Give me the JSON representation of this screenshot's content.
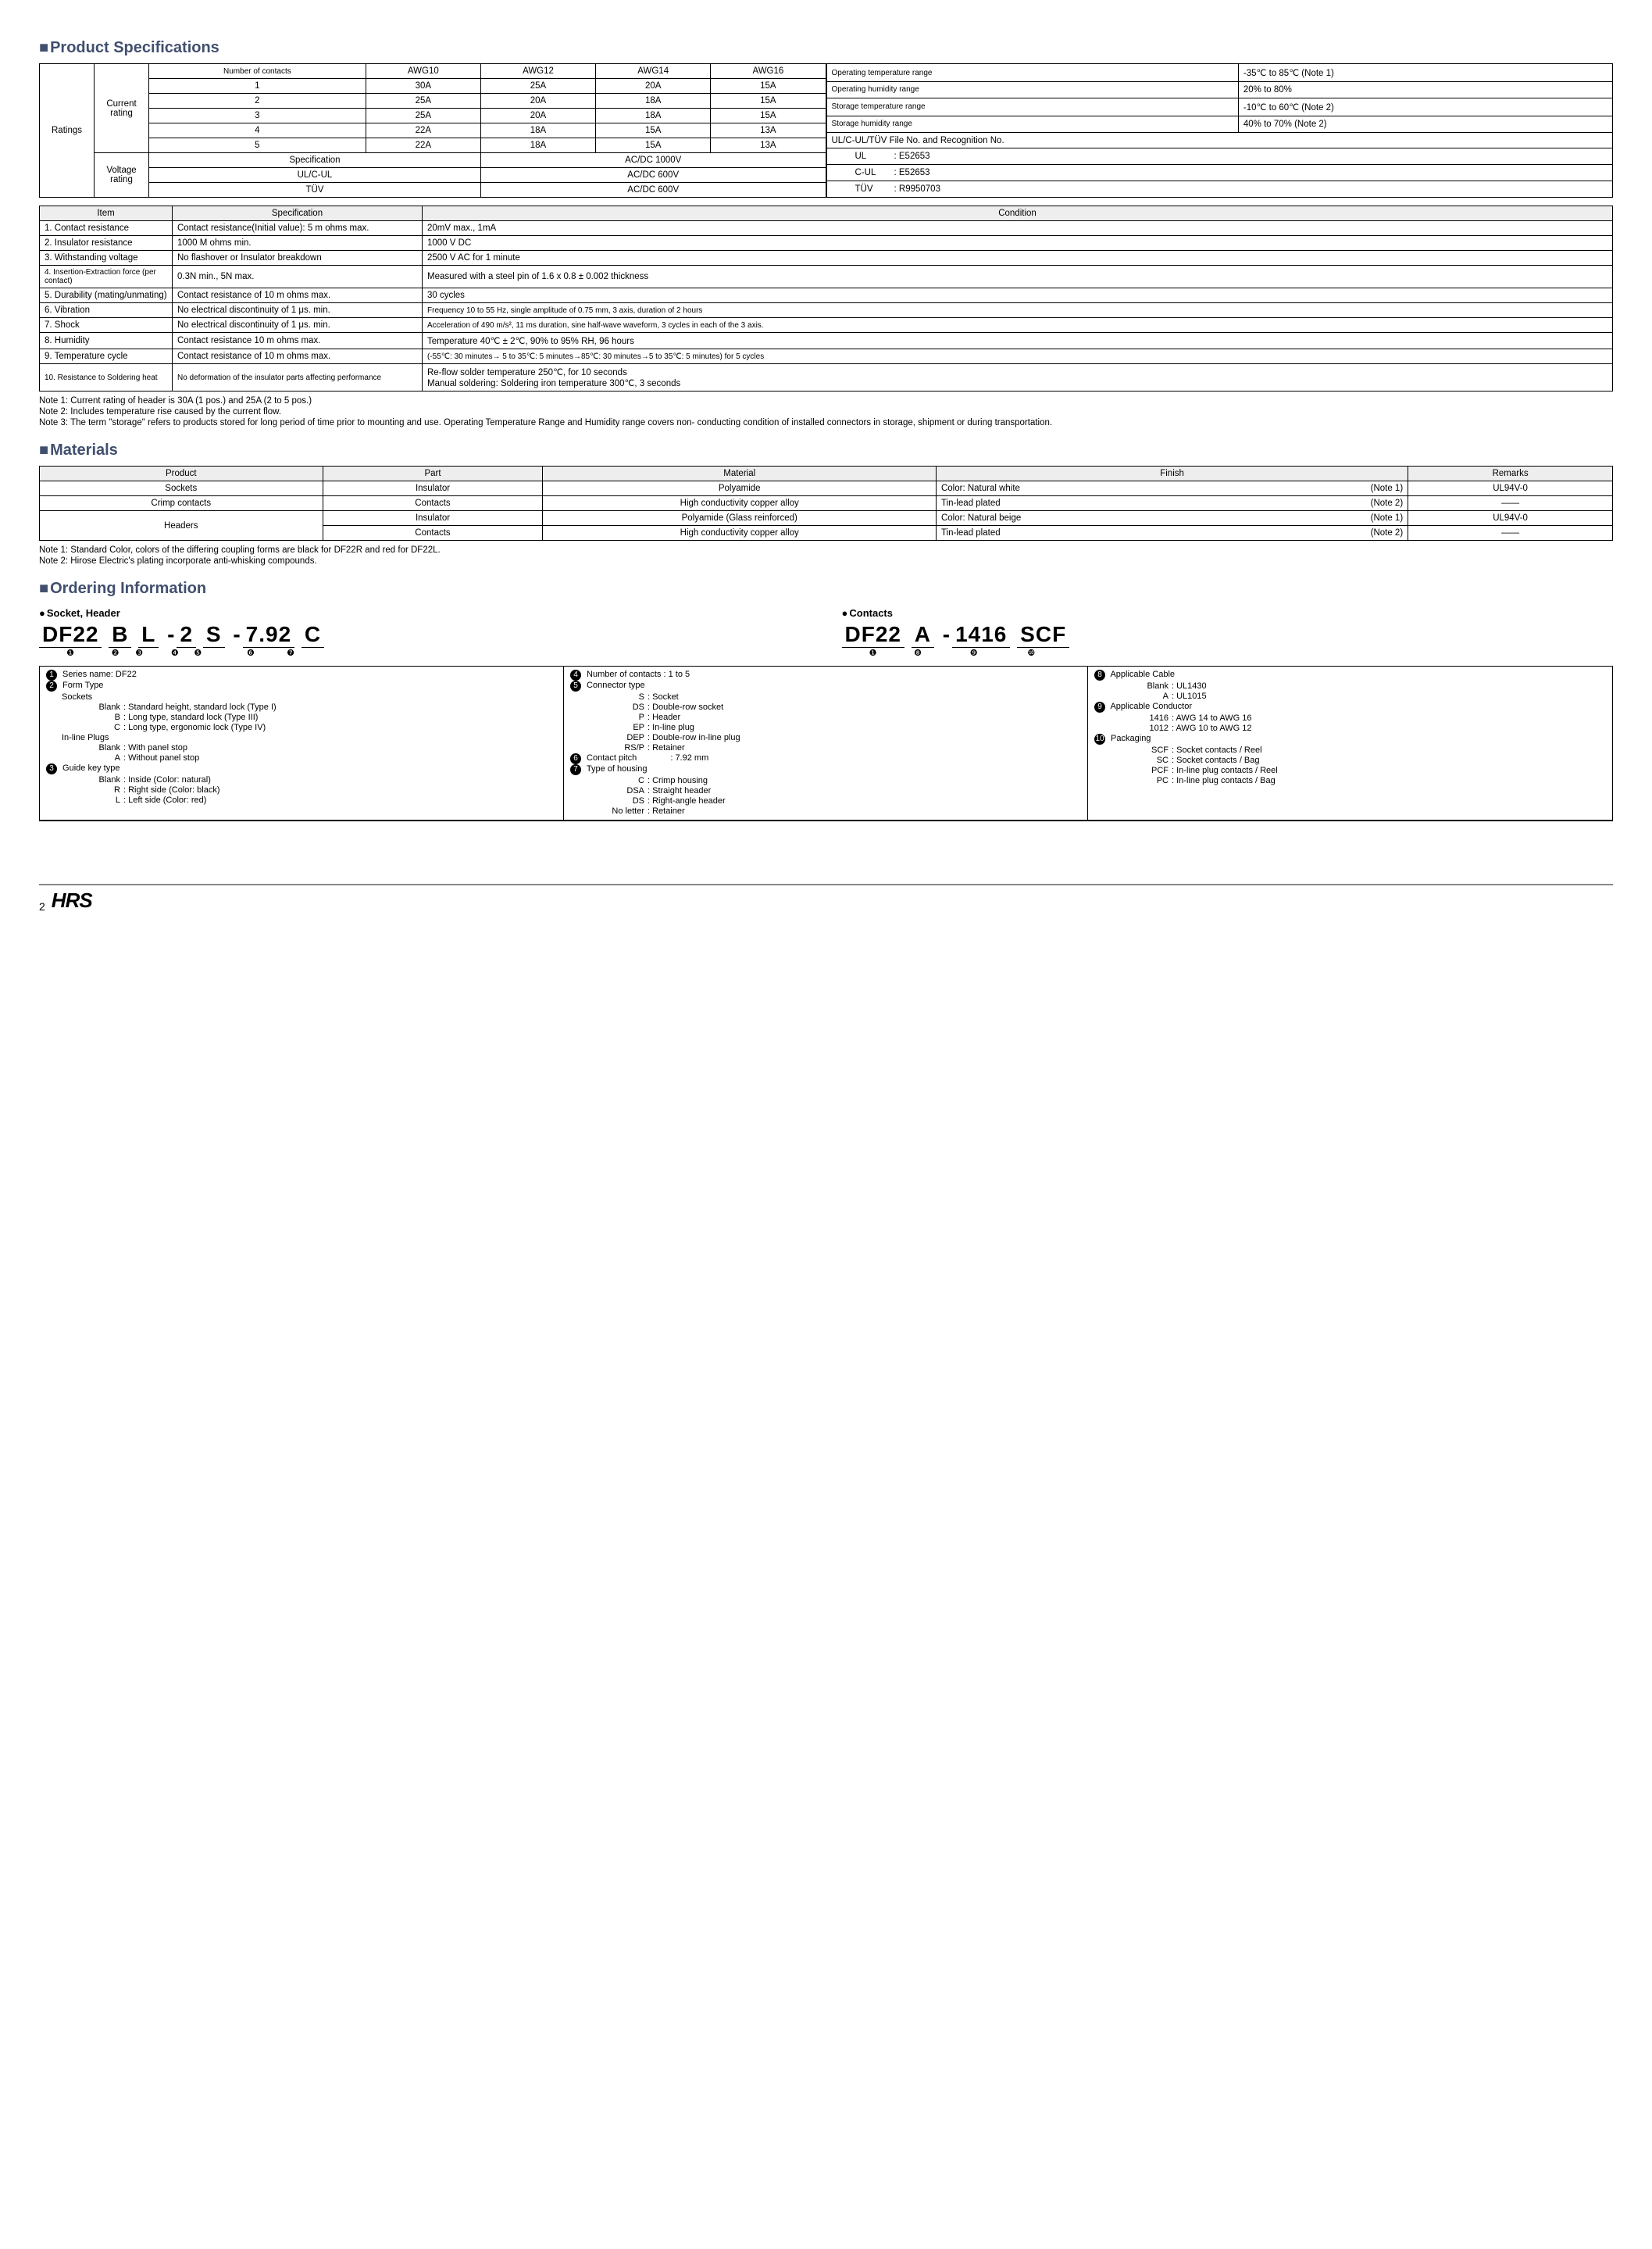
{
  "sections": {
    "spec_title": "Product Specifications",
    "materials_title": "Materials",
    "ordering_title": "Ordering Information"
  },
  "ratings": {
    "label_ratings": "Ratings",
    "label_current": "Current rating",
    "label_voltage": "Voltage rating",
    "header_noc": "Number of contacts",
    "header_awg": [
      "AWG10",
      "AWG12",
      "AWG14",
      "AWG16"
    ],
    "rows": [
      {
        "n": "1",
        "vals": [
          "30A",
          "25A",
          "20A",
          "15A"
        ]
      },
      {
        "n": "2",
        "vals": [
          "25A",
          "20A",
          "18A",
          "15A"
        ]
      },
      {
        "n": "3",
        "vals": [
          "25A",
          "20A",
          "18A",
          "15A"
        ]
      },
      {
        "n": "4",
        "vals": [
          "22A",
          "18A",
          "15A",
          "13A"
        ]
      },
      {
        "n": "5",
        "vals": [
          "22A",
          "18A",
          "15A",
          "13A"
        ]
      }
    ],
    "voltage_header_spec": "Specification",
    "voltage_rows": [
      {
        "spec": "Specification",
        "val": "AC/DC    1000V"
      },
      {
        "spec": "UL/C-UL",
        "val": "AC/DC     600V"
      },
      {
        "spec": "TÜV",
        "val": "AC/DC     600V"
      }
    ],
    "env": [
      {
        "k": "Operating temperature range",
        "v": "-35℃ to 85℃ (Note 1)"
      },
      {
        "k": "Operating humidity range",
        "v": "20% to 80%"
      },
      {
        "k": "Storage temperature range",
        "v": "-10℃ to 60℃ (Note 2)"
      },
      {
        "k": "Storage humidity range",
        "v": "40% to 70% (Note 2)"
      }
    ],
    "cert_header": "UL/C-UL/TÜV    File No. and Recognition No.",
    "certs": [
      {
        "k": "UL",
        "v": ": E52653"
      },
      {
        "k": "C-UL",
        "v": ": E52653"
      },
      {
        "k": "TÜV",
        "v": ": R9950703"
      }
    ]
  },
  "spec_table": {
    "headers": [
      "Item",
      "Specification",
      "Condition"
    ],
    "rows": [
      {
        "item": "1. Contact resistance",
        "spec": "Contact resistance(Initial value): 5 m ohms max.",
        "cond": "20mV max., 1mA"
      },
      {
        "item": "2. Insulator resistance",
        "spec": "1000 M ohms min.",
        "cond": "1000 V DC"
      },
      {
        "item": "3. Withstanding voltage",
        "spec": "No flashover or Insulator breakdown",
        "cond": "2500 V AC for 1 minute"
      },
      {
        "item": "4. Insertion-Extraction force (per contact)",
        "spec": "0.3N min., 5N max.",
        "cond": "Measured with a steel pin of 1.6 x 0.8 ± 0.002 thickness"
      },
      {
        "item": "5. Durability (mating/unmating)",
        "spec": "Contact resistance of 10 m ohms max.",
        "cond": "30 cycles"
      },
      {
        "item": "6. Vibration",
        "spec": "No electrical discontinuity of 1 μs. min.",
        "cond": "Frequency 10 to 55 Hz, single amplitude of 0.75 mm, 3 axis, duration of 2 hours"
      },
      {
        "item": "7. Shock",
        "spec": "No electrical discontinuity of 1 μs. min.",
        "cond": "Acceleration of 490 m/s², 11 ms duration, sine half-wave waveform, 3 cycles in each of the 3 axis."
      },
      {
        "item": "8. Humidity",
        "spec": "Contact resistance 10 m ohms max.",
        "cond": "Temperature 40℃ ± 2℃, 90% to 95% RH, 96 hours"
      },
      {
        "item": "9. Temperature cycle",
        "spec": "Contact resistance of 10 m ohms max.",
        "cond": "(-55℃: 30 minutes→ 5 to 35℃: 5 minutes→85℃: 30 minutes→5 to 35℃: 5 minutes) for 5 cycles"
      },
      {
        "item": "10. Resistance to Soldering heat",
        "spec": "No deformation of the insulator parts affecting performance",
        "cond": "Re-flow solder temperature 250℃, for 10 seconds\nManual soldering: Soldering iron temperature 300℃, 3 seconds"
      }
    ]
  },
  "spec_notes": [
    "Note 1: Current rating of header is 30A (1 pos.) and 25A (2 to 5 pos.)",
    "Note 2: Includes temperature rise caused by the current flow.",
    "Note 3: The term \"storage\" refers to products stored for long period of time prior to mounting and use. Operating Temperature Range and Humidity range covers non- conducting condition of installed connectors in storage, shipment or during transportation."
  ],
  "materials": {
    "headers": [
      "Product",
      "Part",
      "Material",
      "Finish",
      "Remarks"
    ],
    "rows": [
      {
        "product": "Sockets",
        "part": "Insulator",
        "material": "Polyamide",
        "finish": "Color: Natural white",
        "finish_note": "(Note 1)",
        "remarks": "UL94V-0"
      },
      {
        "product": "Crimp contacts",
        "part": "Contacts",
        "material": "High conductivity copper alloy",
        "finish": "Tin-lead plated",
        "finish_note": "(Note 2)",
        "remarks": "——"
      },
      {
        "product": "Headers",
        "part": "Insulator",
        "material": "Polyamide (Glass reinforced)",
        "finish": "Color: Natural beige",
        "finish_note": "(Note 1)",
        "remarks": "UL94V-0"
      },
      {
        "product": "",
        "part": "Contacts",
        "material": "High conductivity copper alloy",
        "finish": "Tin-lead plated",
        "finish_note": "(Note 2)",
        "remarks": "——"
      }
    ]
  },
  "materials_notes": [
    "Note 1: Standard Color, colors of the differing coupling forms are black for DF22R and red for DF22L.",
    "Note 2: Hirose Electric's plating incorporate anti-whisking compounds."
  ],
  "ordering": {
    "socket_header_label": "Socket, Header",
    "contacts_label": "Contacts",
    "partno1_segs": [
      "DF22",
      "B",
      "L",
      "-",
      "2",
      "S",
      "-",
      "7.92",
      "C"
    ],
    "partno1_marks": [
      "❶",
      "❷",
      "❸",
      "",
      "❹",
      "❺",
      "",
      "❻",
      "❼"
    ],
    "partno2_segs": [
      "DF22",
      "A",
      "-",
      "1416",
      "SCF"
    ],
    "partno2_marks": [
      "❶",
      "❽",
      "",
      "❾",
      "❿"
    ],
    "legend": {
      "c1": [
        {
          "num": "❶",
          "title": "Series name: DF22"
        },
        {
          "num": "❷",
          "title": "Form Type",
          "lines": [
            {
              "h": "Sockets"
            },
            {
              "k": "Blank",
              "v": ": Standard height, standard lock (Type I)"
            },
            {
              "k": "B",
              "v": ": Long type, standard lock (Type III)"
            },
            {
              "k": "C",
              "v": ": Long type, ergonomic lock (Type IV)"
            },
            {
              "h": "In-line Plugs"
            },
            {
              "k": "Blank",
              "v": ": With panel stop"
            },
            {
              "k": "A",
              "v": ": Without panel stop"
            }
          ]
        },
        {
          "num": "❸",
          "title": "Guide key type",
          "lines": [
            {
              "k": "Blank",
              "v": ": Inside (Color: natural)"
            },
            {
              "k": "R",
              "v": ": Right side (Color: black)"
            },
            {
              "k": "L",
              "v": ": Left side (Color: red)"
            }
          ]
        }
      ],
      "c2": [
        {
          "num": "❹",
          "title": "Number of contacts : 1 to 5"
        },
        {
          "num": "❺",
          "title": "Connector type",
          "lines": [
            {
              "k": "S",
              "v": ": Socket"
            },
            {
              "k": "DS",
              "v": ": Double-row socket"
            },
            {
              "k": "P",
              "v": ": Header"
            },
            {
              "k": "EP",
              "v": ": In-line plug"
            },
            {
              "k": "DEP",
              "v": ": Double-row in-line plug"
            },
            {
              "k": "RS/P",
              "v": ": Retainer"
            }
          ]
        },
        {
          "num": "❻",
          "title": "Contact pitch",
          "inline": ": 7.92 mm"
        },
        {
          "num": "❼",
          "title": "Type of housing",
          "lines": [
            {
              "k": "C",
              "v": ": Crimp housing"
            },
            {
              "k": "DSA",
              "v": ": Straight header"
            },
            {
              "k": "DS",
              "v": ": Right-angle header"
            },
            {
              "k": "No letter",
              "v": ": Retainer"
            }
          ]
        }
      ],
      "c3": [
        {
          "num": "❽",
          "title": "Applicable Cable",
          "lines": [
            {
              "k": "Blank",
              "v": ": UL1430"
            },
            {
              "k": "A",
              "v": ": UL1015"
            }
          ]
        },
        {
          "num": "❾",
          "title": "Applicable Conductor",
          "lines": [
            {
              "k": "1416",
              "v": ": AWG 14 to AWG 16"
            },
            {
              "k": "1012",
              "v": ": AWG 10 to AWG 12"
            }
          ]
        },
        {
          "num": "❿",
          "title": "Packaging",
          "lines": [
            {
              "k": "SCF",
              "v": ": Socket contacts / Reel"
            },
            {
              "k": "SC",
              "v": ": Socket contacts / Bag"
            },
            {
              "k": "PCF",
              "v": ": In-line plug contacts / Reel"
            },
            {
              "k": "PC",
              "v": ": In-line plug contacts / Bag"
            }
          ]
        }
      ]
    }
  },
  "footer": {
    "page": "2",
    "logo": "HRS"
  }
}
